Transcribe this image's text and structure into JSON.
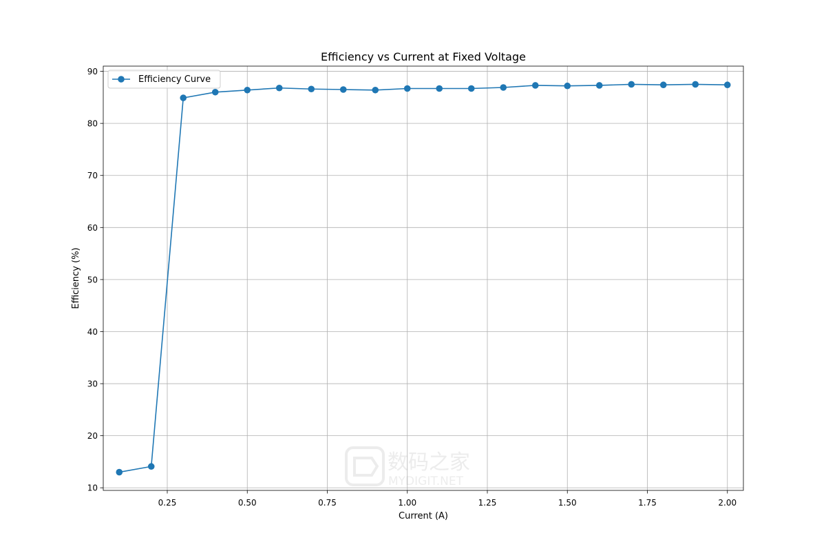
{
  "chart_data": {
    "type": "line",
    "title": "Efficiency vs Current at Fixed Voltage",
    "xlabel": "Current (A)",
    "ylabel": "Efficiency (%)",
    "xlim": [
      0.05,
      2.05
    ],
    "ylim": [
      9.5,
      91.0
    ],
    "xticks": [
      0.25,
      0.5,
      0.75,
      1.0,
      1.25,
      1.5,
      1.75,
      2.0
    ],
    "xtick_labels": [
      "0.25",
      "0.50",
      "0.75",
      "1.00",
      "1.25",
      "1.50",
      "1.75",
      "2.00"
    ],
    "yticks": [
      10,
      20,
      30,
      40,
      50,
      60,
      70,
      80,
      90
    ],
    "ytick_labels": [
      "10",
      "20",
      "30",
      "40",
      "50",
      "60",
      "70",
      "80",
      "90"
    ],
    "grid": true,
    "legend_position": "upper-left",
    "series": [
      {
        "name": "Efficiency Curve",
        "color": "#1f77b4",
        "marker": "circle",
        "x": [
          0.1,
          0.2,
          0.3,
          0.4,
          0.5,
          0.6,
          0.7,
          0.8,
          0.9,
          1.0,
          1.1,
          1.2,
          1.3,
          1.4,
          1.5,
          1.6,
          1.7,
          1.8,
          1.9,
          2.0
        ],
        "y": [
          13.0,
          14.1,
          84.9,
          86.0,
          86.4,
          86.8,
          86.6,
          86.5,
          86.4,
          86.7,
          86.7,
          86.7,
          86.9,
          87.3,
          87.2,
          87.3,
          87.5,
          87.4,
          87.5,
          87.4
        ]
      }
    ]
  },
  "watermark": {
    "text": "数码之家",
    "subtext": "MYDIGIT.NET",
    "color": "#9a9a9a"
  }
}
